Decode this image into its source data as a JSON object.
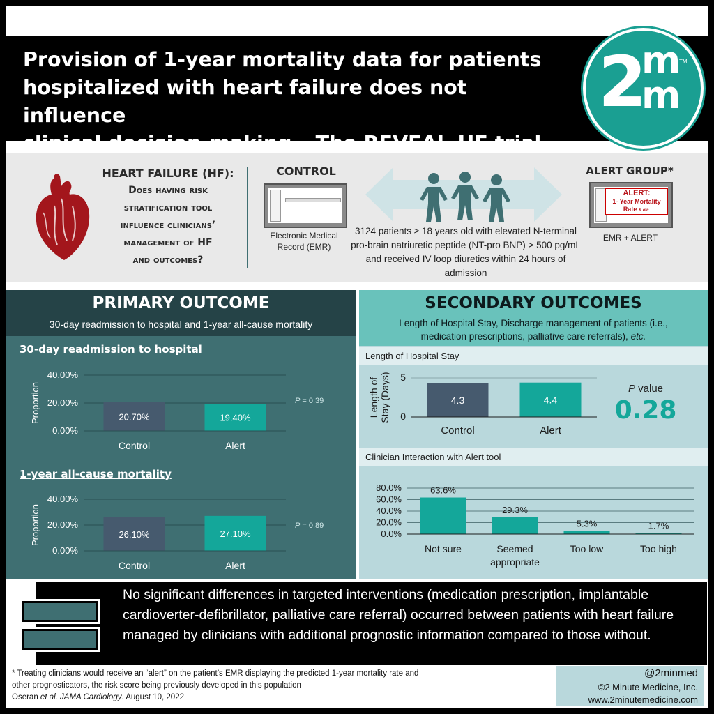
{
  "title": {
    "line1": "Provision of 1-year mortality data for patients",
    "line2": "hospitalized with heart failure does not influence",
    "line3": "clinical decision-making – The REVEAL-HF trial"
  },
  "logo": {
    "digit": "2",
    "m_top": "m",
    "m_bottom": "m",
    "tm": "TM",
    "color": "#1a9f92"
  },
  "intro": {
    "hf_title": "HEART FAILURE (HF):",
    "hf_question": [
      "Does having risk",
      "stratification tool",
      "influence clinicians’",
      "management of HF",
      "and outcomes?"
    ],
    "control_label": "CONTROL",
    "control_caption": [
      "Electronic Medical",
      "Record (EMR)"
    ],
    "patients_text": "3124 patients ≥ 18 years old with elevated N-terminal pro-brain natriuretic peptide (NT-pro BNP) > 500 pg/mL and received IV loop diuretics within 24 hours of admission",
    "alert_label": "ALERT GROUP*",
    "alert_popup_title": "ALERT:",
    "alert_popup_line": "1- Year Mortality",
    "alert_popup_rate": "Rate",
    "alert_popup_etc": "& etc.",
    "alert_caption": "EMR + ALERT"
  },
  "primary": {
    "title": "PRIMARY OUTCOME",
    "subtitle": "30-day readmission to hospital and 1-year all-cause mortality",
    "chart1_heading": "30-day readmission to hospital",
    "chart1_p": "= 0.39",
    "chart2_heading": "1-year all-cause mortality",
    "chart2_p": "= 0.89",
    "p_letter": "P"
  },
  "secondary": {
    "title": "SECONDARY OUTCOMES",
    "subtitle_line1": "Length of Hospital Stay, Discharge management of patients (i.e.,",
    "subtitle_line2": "medication prescriptions, palliative care referrals),",
    "subtitle_etc": "etc.",
    "los_band": "Length of Hospital Stay",
    "interaction_band": "Clinician Interaction with Alert tool",
    "p_value_label": "value",
    "p_letter": "P",
    "p_value": "0.28"
  },
  "chart_data": [
    {
      "type": "bar",
      "title": "30-day readmission to hospital",
      "categories": [
        "Control",
        "Alert"
      ],
      "values": [
        20.7,
        19.4
      ],
      "value_labels": [
        "20.70%",
        "19.40%"
      ],
      "ylabel": "Proportion",
      "yticks": [
        "0.00%",
        "20.00%",
        "40.00%"
      ],
      "ylim": [
        0,
        40
      ],
      "colors": [
        "#465a6e",
        "#14a79a"
      ]
    },
    {
      "type": "bar",
      "title": "1-year all-cause mortality",
      "categories": [
        "Control",
        "Alert"
      ],
      "values": [
        26.1,
        27.1
      ],
      "value_labels": [
        "26.10%",
        "27.10%"
      ],
      "ylabel": "Proportion",
      "yticks": [
        "0.00%",
        "20.00%",
        "40.00%"
      ],
      "ylim": [
        0,
        40
      ],
      "colors": [
        "#465a6e",
        "#14a79a"
      ]
    },
    {
      "type": "bar",
      "title": "Length of Hospital Stay",
      "categories": [
        "Control",
        "Alert"
      ],
      "values": [
        4.3,
        4.4
      ],
      "value_labels": [
        "4.3",
        "4.4"
      ],
      "ylabel": "Length of Stay (Days)",
      "ylabel_lines": [
        "Length of",
        "Stay (Days)"
      ],
      "yticks": [
        "0",
        "5"
      ],
      "ylim": [
        0,
        5
      ],
      "colors": [
        "#465a6e",
        "#14a79a"
      ]
    },
    {
      "type": "bar",
      "title": "Clinician Interaction with Alert tool",
      "categories": [
        "Not sure",
        "Seemed appropriate",
        "Too low",
        "Too high"
      ],
      "category_lines": [
        [
          "Not sure"
        ],
        [
          "Seemed",
          "appropriate"
        ],
        [
          "Too low"
        ],
        [
          "Too high"
        ]
      ],
      "values": [
        63.6,
        29.3,
        5.3,
        1.7
      ],
      "value_labels": [
        "63.6%",
        "29.3%",
        "5.3%",
        "1.7%"
      ],
      "yticks": [
        "0.0%",
        "20.0%",
        "40.0%",
        "60.0%",
        "80.0%"
      ],
      "ylim": [
        0,
        80
      ],
      "colors": [
        "#14a79a",
        "#14a79a",
        "#14a79a",
        "#14a79a"
      ]
    }
  ],
  "conclusion": "No significant differences in targeted interventions (medication prescription, implantable cardioverter-defibrillator, palliative care referral) occurred between patients with heart failure managed by clinicians with additional prognostic information compared to those without.",
  "footer": {
    "note_line1": "* Treating clinicians would receive an “alert” on the patient’s EMR displaying the predicted 1-year mortality rate  and",
    "note_line2": "other prognosticators, the risk score being previously developed in this population",
    "citation_authors": "Oseran",
    "citation_etal": "et al. JAMA Cardiology",
    "citation_date": ". August 10, 2022",
    "handle": "@2minmed",
    "copyright": "©2 Minute Medicine, Inc.",
    "website": "www.2minutemedicine.com"
  }
}
